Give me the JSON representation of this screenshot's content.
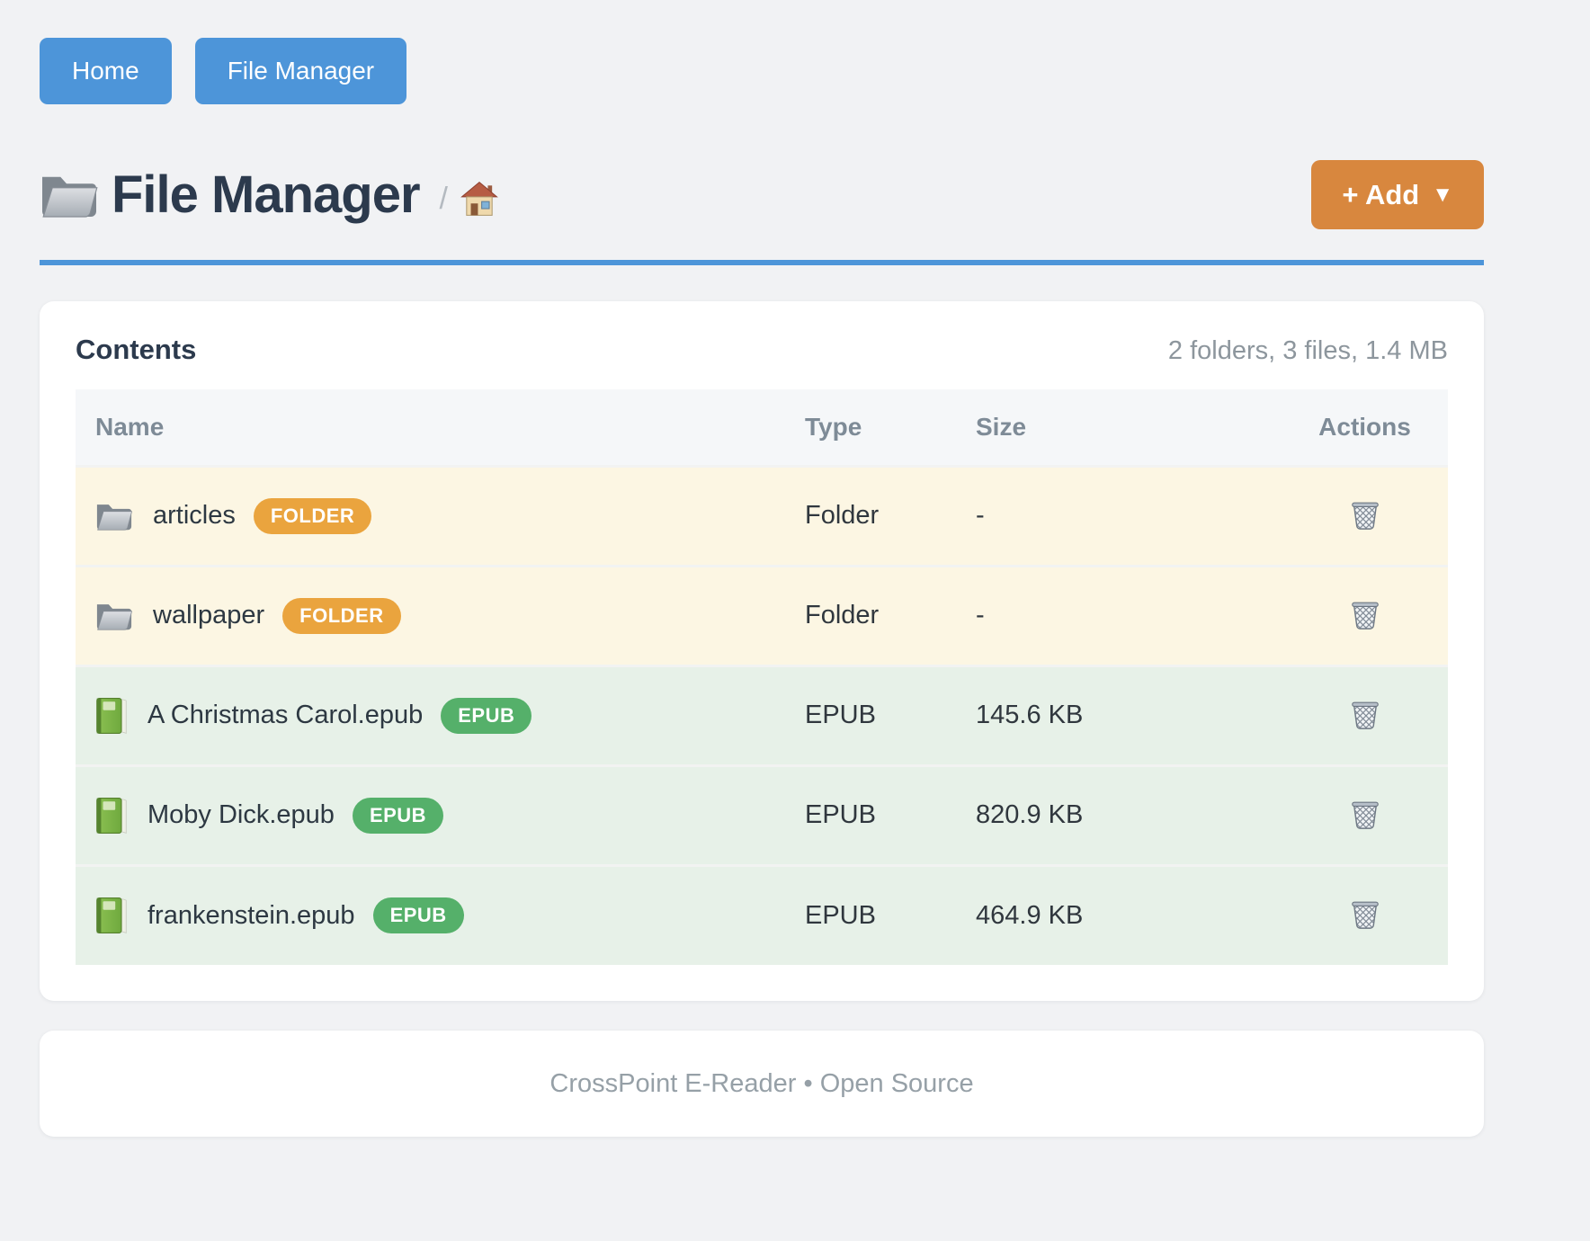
{
  "nav": {
    "buttons": [
      {
        "label": "Home"
      },
      {
        "label": "File Manager"
      }
    ]
  },
  "header": {
    "title": "File Manager",
    "breadcrumb_separator": "/",
    "add_button": {
      "label": "+ Add",
      "caret": "▼"
    }
  },
  "panel": {
    "title": "Contents",
    "summary": "2 folders, 3 files, 1.4 MB"
  },
  "table": {
    "headers": [
      "Name",
      "Type",
      "Size",
      "Actions"
    ],
    "rows": [
      {
        "name": "articles",
        "badge": "FOLDER",
        "kind": "folder",
        "type": "Folder",
        "size": "-"
      },
      {
        "name": "wallpaper",
        "badge": "FOLDER",
        "kind": "folder",
        "type": "Folder",
        "size": "-"
      },
      {
        "name": "A Christmas Carol.epub",
        "badge": "EPUB",
        "kind": "epub",
        "type": "EPUB",
        "size": "145.6 KB"
      },
      {
        "name": "Moby Dick.epub",
        "badge": "EPUB",
        "kind": "epub",
        "type": "EPUB",
        "size": "820.9 KB"
      },
      {
        "name": "frankenstein.epub",
        "badge": "EPUB",
        "kind": "epub",
        "type": "EPUB",
        "size": "464.9 KB"
      }
    ]
  },
  "footer": {
    "text": "CrossPoint E-Reader • Open Source"
  },
  "colors": {
    "accent_blue": "#4d95d9",
    "accent_orange": "#d8873e",
    "badge_folder": "#eaa43e",
    "badge_epub": "#55b06a",
    "row_folder_bg": "#fcf6e3",
    "row_epub_bg": "#e7f1e8"
  }
}
